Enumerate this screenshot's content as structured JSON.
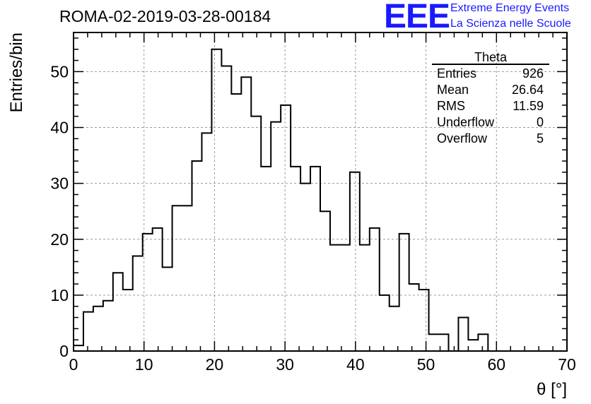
{
  "header": {
    "run_title": "ROMA-02-2019-03-28-00184",
    "logo_text": "EEE",
    "org_line1": "Extreme Energy Events",
    "org_line2": "La Scienza nelle Scuole",
    "accent_color": "#1a1aff"
  },
  "stats_box": {
    "title": "Theta",
    "rows": [
      {
        "label": "Entries",
        "value": "926"
      },
      {
        "label": "Mean",
        "value": "26.64"
      },
      {
        "label": "RMS",
        "value": "11.59"
      },
      {
        "label": "Underflow",
        "value": "0"
      },
      {
        "label": "Overflow",
        "value": "5"
      }
    ]
  },
  "chart_data": {
    "type": "histogram",
    "xlabel": "θ [°]",
    "ylabel": "Entries/bin",
    "xlim": [
      0,
      70
    ],
    "ylim": [
      0,
      57
    ],
    "x_ticks": [
      0,
      10,
      20,
      30,
      40,
      50,
      60,
      70
    ],
    "y_ticks": [
      0,
      10,
      20,
      30,
      40,
      50
    ],
    "grid": true,
    "bin_width": 1.4,
    "bin_edges_start": 0,
    "values": [
      1,
      7,
      8,
      9,
      14,
      11,
      17,
      21,
      22,
      15,
      26,
      26,
      34,
      39,
      54,
      51,
      46,
      49,
      42,
      33,
      41,
      44,
      33,
      30,
      33,
      25,
      19,
      19,
      32,
      19,
      22,
      10,
      8,
      21,
      12,
      11,
      3,
      3,
      0,
      6,
      2,
      3,
      0,
      0,
      0,
      0,
      0,
      0,
      0,
      0
    ]
  }
}
